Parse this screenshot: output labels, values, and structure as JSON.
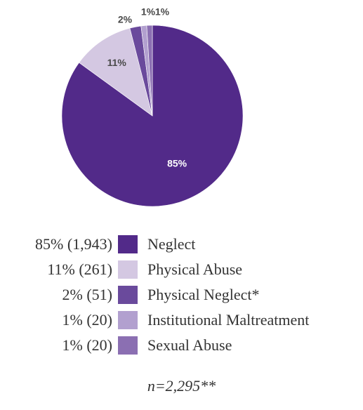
{
  "chart_data": {
    "type": "pie",
    "slices": [
      {
        "label": "Neglect",
        "percent": 85,
        "count": "1,943",
        "percent_label": "85%",
        "legend_value": "85% (1,943)",
        "color": "#522a89"
      },
      {
        "label": "Physical Abuse",
        "percent": 11,
        "count": "261",
        "percent_label": "11%",
        "legend_value": "11% (261)",
        "color": "#d4c8e2"
      },
      {
        "label": "Physical Neglect*",
        "percent": 2,
        "count": "51",
        "percent_label": "2%",
        "legend_value": "2% (51)",
        "color": "#6a4a9c"
      },
      {
        "label": "Institutional Maltreatment",
        "percent": 1,
        "count": "20",
        "percent_label": "1%",
        "legend_value": "1% (20)",
        "color": "#b2a0cf"
      },
      {
        "label": "Sexual Abuse",
        "percent": 1,
        "count": "20",
        "percent_label": "1%",
        "legend_value": "1% (20)",
        "color": "#8b6fb2"
      }
    ],
    "legend_placement": "bottom",
    "footnote": "n=2,295**"
  }
}
